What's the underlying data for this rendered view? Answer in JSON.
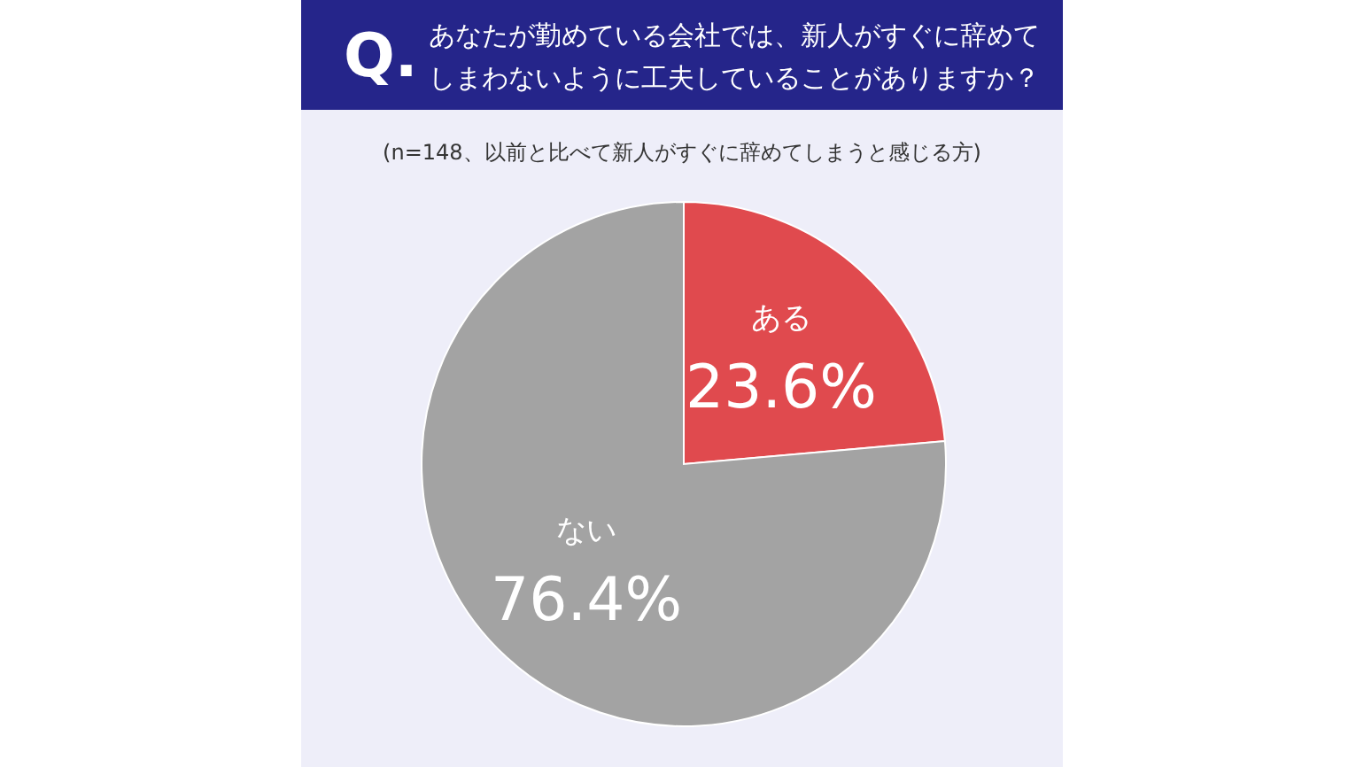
{
  "chart_data": {
    "type": "pie",
    "title": "あなたが勤めている会社では、新人がすぐに辞めてしまわないように工夫していることがありますか？",
    "subtitle": "(n=148、以前と比べて新人がすぐに辞めてしまうと感じる方)",
    "annotations": [
      "Q."
    ],
    "categories": [
      "ある",
      "ない"
    ],
    "values": [
      23.6,
      76.4
    ],
    "colors": [
      "#e04a4e",
      "#a3a3a3"
    ],
    "value_labels": [
      "23.6%",
      "76.4%"
    ],
    "legend": false
  }
}
